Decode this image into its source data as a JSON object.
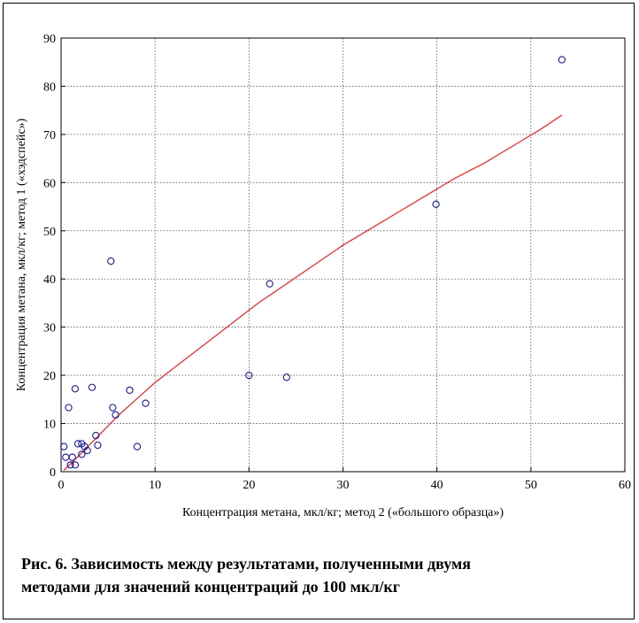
{
  "caption": {
    "line1": "Рис. 6. Зависимость между результатами, полученными двумя",
    "line2": "методами для значений концентраций до 100 мкл/кг"
  },
  "chart_data": {
    "type": "scatter",
    "title": "",
    "xlabel": "Концентрация метана, мкл/кг; метод 2 («большого образца»)",
    "ylabel": "Концентрация метана, мкл/кг; метод 1 («хэдспейс»)",
    "xlim": [
      0,
      60
    ],
    "ylim": [
      0,
      90
    ],
    "x_ticks": [
      "0",
      "10",
      "20",
      "30",
      "40",
      "50",
      "60"
    ],
    "y_ticks": [
      "0",
      "10",
      "20",
      "30",
      "40",
      "50",
      "60",
      "70",
      "80",
      "90"
    ],
    "grid": true,
    "series": [
      {
        "type": "scatter",
        "color": "#1a1a8c",
        "points": [
          [
            0.3,
            5.2
          ],
          [
            0.5,
            3.0
          ],
          [
            0.8,
            13.3
          ],
          [
            1.0,
            1.4
          ],
          [
            1.2,
            3.0
          ],
          [
            1.5,
            1.4
          ],
          [
            1.5,
            17.2
          ],
          [
            1.8,
            5.8
          ],
          [
            2.2,
            5.8
          ],
          [
            2.2,
            3.6
          ],
          [
            2.5,
            5.2
          ],
          [
            2.8,
            4.4
          ],
          [
            3.3,
            17.5
          ],
          [
            3.7,
            7.5
          ],
          [
            3.9,
            5.5
          ],
          [
            5.3,
            43.7
          ],
          [
            5.5,
            13.3
          ],
          [
            5.8,
            11.8
          ],
          [
            7.3,
            16.9
          ],
          [
            8.1,
            5.2
          ],
          [
            9.0,
            14.2
          ],
          [
            20.0,
            20.0
          ],
          [
            22.2,
            39.0
          ],
          [
            24.0,
            19.6
          ],
          [
            39.9,
            55.5
          ],
          [
            53.3,
            85.5
          ]
        ]
      },
      {
        "type": "line",
        "color": "#e03030",
        "points": [
          [
            0.3,
            0.3
          ],
          [
            2,
            3.5
          ],
          [
            4,
            7.5
          ],
          [
            6,
            11.5
          ],
          [
            8,
            15
          ],
          [
            10,
            18.5
          ],
          [
            12,
            21.5
          ],
          [
            15,
            26
          ],
          [
            18,
            30.5
          ],
          [
            21,
            35
          ],
          [
            24,
            39
          ],
          [
            27,
            43
          ],
          [
            30,
            47
          ],
          [
            33,
            50.5
          ],
          [
            36,
            54
          ],
          [
            39,
            57.5
          ],
          [
            42,
            61
          ],
          [
            45,
            64
          ],
          [
            48,
            67.5
          ],
          [
            51,
            71
          ],
          [
            53.3,
            74
          ]
        ]
      }
    ]
  }
}
